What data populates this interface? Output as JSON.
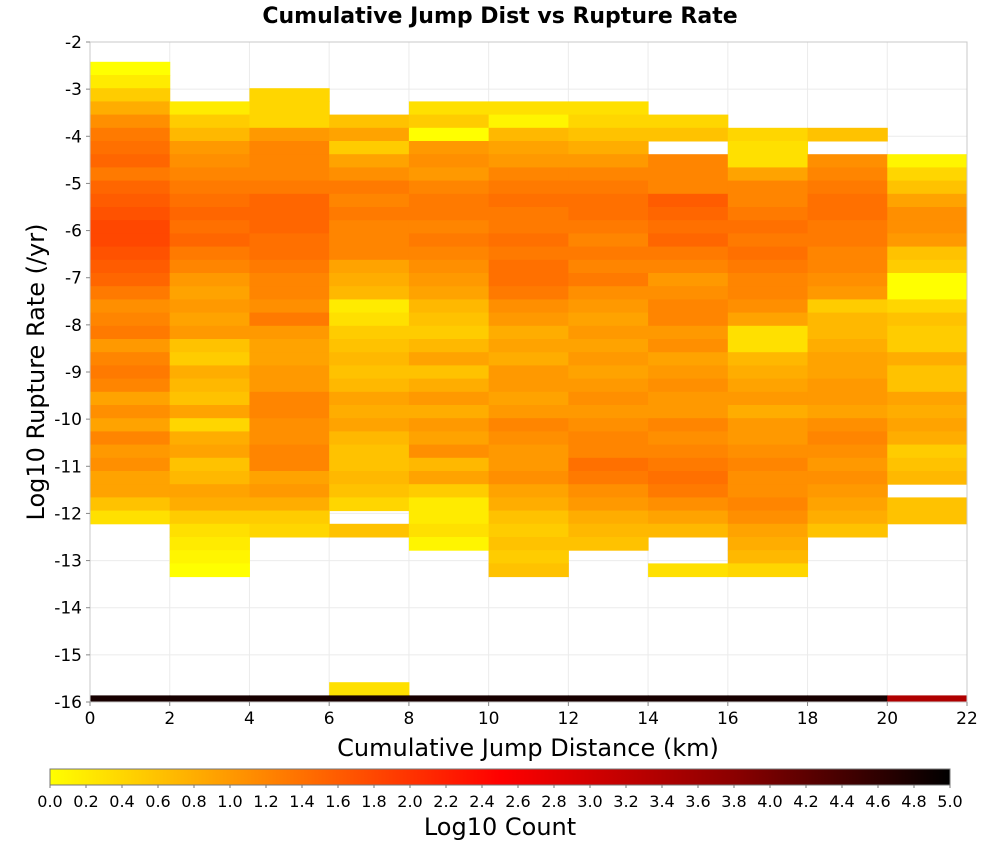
{
  "chart_data": {
    "type": "heatmap",
    "title": "Cumulative Jump Dist vs Rupture Rate",
    "xlabel": "Cumulative Jump Distance (km)",
    "ylabel": "Log10 Rupture Rate (/yr)",
    "xlim": [
      0,
      22
    ],
    "ylim": [
      -16,
      -2
    ],
    "x_ticks": [
      0,
      2,
      4,
      6,
      8,
      10,
      12,
      14,
      16,
      18,
      20,
      22
    ],
    "y_ticks": [
      -2,
      -3,
      -4,
      -5,
      -6,
      -7,
      -8,
      -9,
      -10,
      -11,
      -12,
      -13,
      -14,
      -15,
      -16
    ],
    "grid": true,
    "x_bin_width": 2,
    "y_bin_height": 0.28,
    "x_bin_starts": [
      0,
      2,
      4,
      6,
      8,
      10,
      12,
      14,
      16,
      18,
      20
    ],
    "columns": [
      {
        "y_top": -2.42,
        "values": [
          0.0,
          0.2,
          0.5,
          0.8,
          1.1,
          1.3,
          1.4,
          1.5,
          1.3,
          1.5,
          1.6,
          1.7,
          1.8,
          1.8,
          1.7,
          1.6,
          1.5,
          1.3,
          1.1,
          1.2,
          1.3,
          1.0,
          1.2,
          1.3,
          1.2,
          0.9,
          1.1,
          0.9,
          1.2,
          1.0,
          1.1,
          0.9,
          0.9,
          0.6,
          0.3
        ]
      },
      {
        "y_top": -3.26,
        "values": [
          0.2,
          0.5,
          0.7,
          1.0,
          1.1,
          1.2,
          1.3,
          1.4,
          1.5,
          1.4,
          1.5,
          1.3,
          1.2,
          1.0,
          0.9,
          1.0,
          0.9,
          1.0,
          0.6,
          0.5,
          0.8,
          0.7,
          0.6,
          0.9,
          0.4,
          0.8,
          0.9,
          0.6,
          0.7,
          0.9,
          0.8,
          0.5,
          0.3,
          0.2,
          0.1,
          0.0
        ]
      },
      {
        "y_top": -2.98,
        "values": [
          0.4,
          0.4,
          0.4,
          1.0,
          1.2,
          1.2,
          1.2,
          1.3,
          1.5,
          1.5,
          1.5,
          1.4,
          1.4,
          1.3,
          1.2,
          1.2,
          1.1,
          1.3,
          1.0,
          0.9,
          0.9,
          1.0,
          1.0,
          1.2,
          1.2,
          1.1,
          1.1,
          1.2,
          1.2,
          0.9,
          1.0,
          0.8,
          0.5,
          0.4
        ]
      },
      {
        "y_top": -3.54,
        "values": [
          0.6,
          0.9,
          0.5,
          0.9,
          1.1,
          1.3,
          1.2,
          1.3,
          1.2,
          1.2,
          1.2,
          0.9,
          0.8,
          0.7,
          0.2,
          0.3,
          0.5,
          0.6,
          0.7,
          0.6,
          0.7,
          0.9,
          0.8,
          0.9,
          0.7,
          0.6,
          0.6,
          0.7,
          0.6,
          0.4,
          null,
          0.6,
          null,
          null,
          null,
          null,
          null,
          null,
          null,
          null,
          null,
          null,
          null,
          0.3
        ]
      },
      {
        "y_top": -3.26,
        "values": [
          0.3,
          0.5,
          0.0,
          1.0,
          1.1,
          1.0,
          1.2,
          1.3,
          1.3,
          1.2,
          1.3,
          1.2,
          1.1,
          1.0,
          0.9,
          0.7,
          0.6,
          0.5,
          0.7,
          0.9,
          0.6,
          0.8,
          1.0,
          0.8,
          1.0,
          0.9,
          1.1,
          0.7,
          0.9,
          0.5,
          0.2,
          0.2,
          0.3,
          0.1
        ]
      },
      {
        "y_top": -3.26,
        "values": [
          0.3,
          0.1,
          0.7,
          0.9,
          1.0,
          1.2,
          1.3,
          1.4,
          1.3,
          1.3,
          1.4,
          1.3,
          1.4,
          1.4,
          1.3,
          1.1,
          1.0,
          0.8,
          0.9,
          0.8,
          1.0,
          1.0,
          0.9,
          1.0,
          1.2,
          1.1,
          1.0,
          1.0,
          1.1,
          0.9,
          0.8,
          0.6,
          0.5,
          0.6,
          0.5,
          0.6
        ]
      },
      {
        "y_top": -3.26,
        "values": [
          0.3,
          0.4,
          0.6,
          0.8,
          1.0,
          1.2,
          1.3,
          1.4,
          1.4,
          1.3,
          1.2,
          1.3,
          1.2,
          1.3,
          1.1,
          1.0,
          0.9,
          1.0,
          0.9,
          1.0,
          0.9,
          1.0,
          1.1,
          1.0,
          1.1,
          1.2,
          1.2,
          1.4,
          1.3,
          1.1,
          1.0,
          0.8,
          0.7,
          0.6
        ]
      },
      {
        "y_top": -3.54,
        "values": [
          0.4,
          0.6,
          null,
          1.2,
          1.2,
          1.2,
          1.6,
          1.5,
          1.4,
          1.5,
          1.3,
          1.2,
          1.0,
          1.1,
          1.2,
          1.2,
          1.0,
          1.1,
          0.9,
          1.0,
          1.1,
          1.0,
          1.0,
          1.2,
          1.1,
          1.2,
          1.3,
          1.4,
          1.3,
          1.1,
          0.9,
          0.7,
          null,
          null,
          0.3
        ]
      },
      {
        "y_top": -3.82,
        "values": [
          0.4,
          0.3,
          0.3,
          0.9,
          1.2,
          1.2,
          1.3,
          1.4,
          1.3,
          1.4,
          1.3,
          1.2,
          1.2,
          1.1,
          0.9,
          0.3,
          0.3,
          0.7,
          0.8,
          0.9,
          1.0,
          0.8,
          1.0,
          1.0,
          1.1,
          1.2,
          1.1,
          1.1,
          1.2,
          1.1,
          0.9,
          0.8,
          0.7,
          0.4
        ]
      },
      {
        "y_top": -3.82,
        "values": [
          0.6,
          null,
          1.1,
          1.2,
          1.3,
          1.4,
          1.4,
          1.3,
          1.3,
          1.2,
          1.2,
          1.1,
          1.0,
          0.5,
          0.7,
          0.7,
          0.8,
          0.9,
          0.9,
          1.0,
          1.0,
          0.9,
          1.1,
          1.2,
          1.1,
          1.0,
          1.1,
          1.0,
          0.9,
          0.8,
          0.6
        ]
      },
      {
        "y_top": -4.38,
        "values": [
          0.1,
          0.4,
          0.6,
          0.9,
          1.1,
          1.1,
          1.0,
          0.6,
          0.5,
          0.0,
          0.0,
          0.4,
          0.6,
          0.5,
          0.5,
          0.8,
          0.6,
          0.6,
          0.9,
          0.8,
          0.9,
          0.8,
          0.5,
          0.6,
          0.7,
          null,
          0.6,
          0.6
        ]
      }
    ],
    "overflow_row": {
      "y_top": -15.86,
      "values": [
        4.8,
        4.8,
        4.8,
        4.8,
        4.8,
        4.8,
        4.8,
        4.8,
        4.8,
        4.8,
        3.4
      ]
    },
    "colorbar": {
      "label": "Log10 Count",
      "min": 0.0,
      "max": 5.0,
      "ticks": [
        "0.0",
        "0.2",
        "0.4",
        "0.6",
        "0.8",
        "1.0",
        "1.2",
        "1.4",
        "1.6",
        "1.8",
        "2.0",
        "2.2",
        "2.4",
        "2.6",
        "2.8",
        "3.0",
        "3.2",
        "3.4",
        "3.6",
        "3.8",
        "4.0",
        "4.2",
        "4.4",
        "4.6",
        "4.8",
        "5.0"
      ],
      "colors": [
        "#ffff00",
        "#ff9900",
        "#ff0000",
        "#8b0000",
        "#000000"
      ],
      "color_stops": [
        0.0,
        1.0,
        2.5,
        3.8,
        5.0
      ]
    }
  }
}
